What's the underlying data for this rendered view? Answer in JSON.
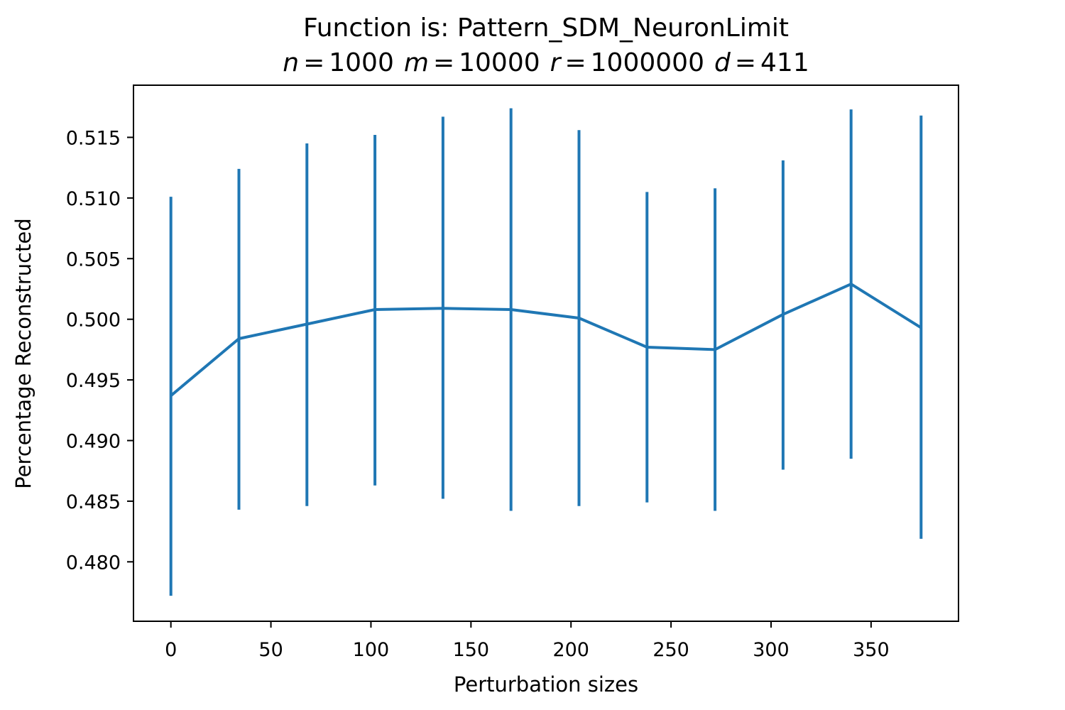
{
  "chart_data": {
    "type": "line",
    "title": "Function is: Pattern_SDM_NeuronLimit",
    "subtitle": {
      "n_label": "n",
      "n_value": "1000",
      "m_label": "m",
      "m_value": "10000",
      "r_label": "r",
      "r_value": "1000000",
      "d_label": "d",
      "d_value": "411",
      "equals": "="
    },
    "xlabel": "Perturbation sizes",
    "ylabel": "Percentage Reconstructed",
    "xlim": [
      -18.7,
      393.7
    ],
    "ylim": [
      0.4751,
      0.5193
    ],
    "xticks": [
      0,
      50,
      100,
      150,
      200,
      250,
      300,
      350
    ],
    "xtick_labels": [
      "0",
      "50",
      "100",
      "150",
      "200",
      "250",
      "300",
      "350"
    ],
    "yticks": [
      0.48,
      0.485,
      0.49,
      0.495,
      0.5,
      0.505,
      0.51,
      0.515
    ],
    "ytick_labels": [
      "0.480",
      "0.485",
      "0.490",
      "0.495",
      "0.500",
      "0.505",
      "0.510",
      "0.515"
    ],
    "grid": false,
    "series": [
      {
        "x": [
          0,
          34,
          68,
          102,
          136,
          170,
          204,
          238,
          272,
          306,
          340,
          375
        ],
        "y": [
          0.4937,
          0.4984,
          0.4996,
          0.5008,
          0.5009,
          0.5008,
          0.5001,
          0.4977,
          0.4975,
          0.5004,
          0.5029,
          0.4993
        ],
        "yerr_low": [
          0.4772,
          0.4843,
          0.4846,
          0.4863,
          0.4852,
          0.4842,
          0.4846,
          0.4849,
          0.4842,
          0.4876,
          0.4885,
          0.4819
        ],
        "yerr_high": [
          0.5101,
          0.5124,
          0.5145,
          0.5152,
          0.5167,
          0.5174,
          0.5156,
          0.5105,
          0.5108,
          0.5131,
          0.5173,
          0.5168
        ],
        "color": "#1f77b4"
      }
    ]
  }
}
